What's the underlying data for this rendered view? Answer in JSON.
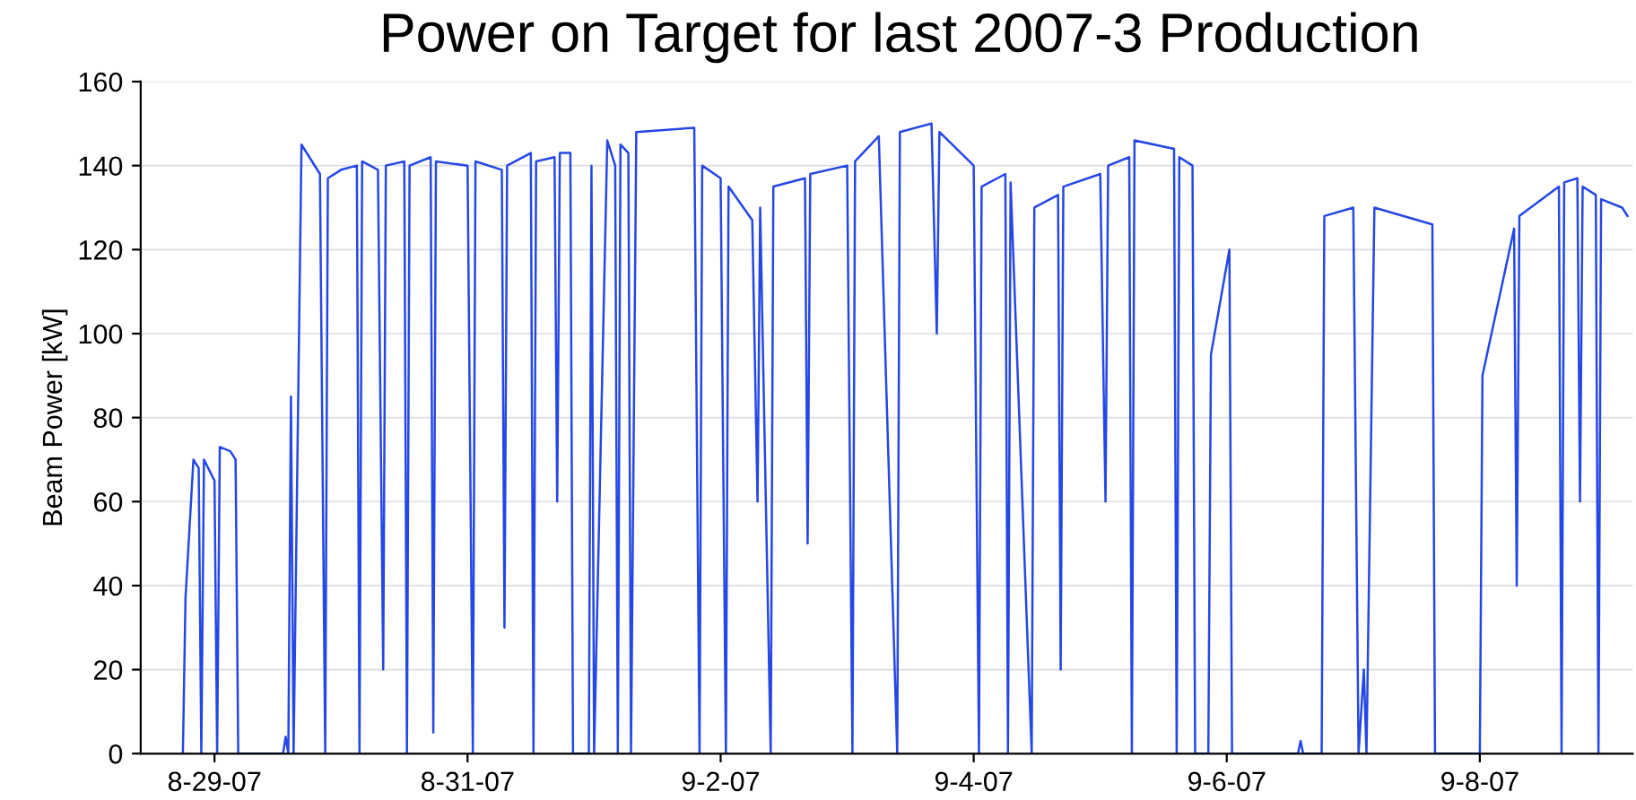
{
  "chart_data": {
    "type": "line",
    "title": "Power on Target for last 2007-3 Production",
    "ylabel": "Beam Power [kW]",
    "xlim": [
      "2007-08-28T10:00",
      "2007-09-09T05:00"
    ],
    "xticks": [
      {
        "value": "2007-08-29",
        "label": "8-29-07"
      },
      {
        "value": "2007-08-31",
        "label": "8-31-07"
      },
      {
        "value": "2007-09-02",
        "label": "9-2-07"
      },
      {
        "value": "2007-09-04",
        "label": "9-4-07"
      },
      {
        "value": "2007-09-06",
        "label": "9-6-07"
      },
      {
        "value": "2007-09-08",
        "label": "9-8-07"
      }
    ],
    "ylim": [
      0,
      160
    ],
    "yticks": [
      0,
      20,
      40,
      60,
      80,
      100,
      120,
      140,
      160
    ],
    "grid": "y",
    "legend": false,
    "marker": "none",
    "line_style": "solid",
    "series": [
      {
        "color": "#2447e6",
        "x": [
          "2007-08-28T18:00",
          "2007-08-28T18:30",
          "2007-08-28T20:00",
          "2007-08-28T21:00",
          "2007-08-28T21:30",
          "2007-08-28T22:00",
          "2007-08-29T00:00",
          "2007-08-29T00:30",
          "2007-08-29T01:00",
          "2007-08-29T03:00",
          "2007-08-29T04:00",
          "2007-08-29T04:30",
          "2007-08-29T13:00",
          "2007-08-29T13:30",
          "2007-08-29T14:00",
          "2007-08-29T14:30",
          "2007-08-29T15:00",
          "2007-08-29T16:30",
          "2007-08-29T20:00",
          "2007-08-29T21:00",
          "2007-08-29T21:30",
          "2007-08-30T00:00",
          "2007-08-30T03:00",
          "2007-08-30T03:30",
          "2007-08-30T04:00",
          "2007-08-30T07:00",
          "2007-08-30T08:00",
          "2007-08-30T08:30",
          "2007-08-30T12:00",
          "2007-08-30T12:30",
          "2007-08-30T13:00",
          "2007-08-30T17:00",
          "2007-08-30T17:30",
          "2007-08-30T18:00",
          "2007-08-31T00:00",
          "2007-08-31T01:00",
          "2007-08-31T01:30",
          "2007-08-31T06:30",
          "2007-08-31T07:00",
          "2007-08-31T07:30",
          "2007-08-31T12:00",
          "2007-08-31T12:30",
          "2007-08-31T13:00",
          "2007-08-31T16:30",
          "2007-08-31T17:00",
          "2007-08-31T17:30",
          "2007-08-31T19:30",
          "2007-08-31T20:00",
          "2007-08-31T23:00",
          "2007-08-31T23:30",
          "2007-09-01T00:00",
          "2007-09-01T02:30",
          "2007-09-01T04:00",
          "2007-09-01T04:30",
          "2007-09-01T05:00",
          "2007-09-01T06:30",
          "2007-09-01T07:00",
          "2007-09-01T08:00",
          "2007-09-01T19:00",
          "2007-09-01T20:00",
          "2007-09-01T20:30",
          "2007-09-02T00:00",
          "2007-09-02T01:00",
          "2007-09-02T01:30",
          "2007-09-02T06:00",
          "2007-09-02T07:00",
          "2007-09-02T07:30",
          "2007-09-02T09:30",
          "2007-09-02T10:00",
          "2007-09-02T16:00",
          "2007-09-02T16:30",
          "2007-09-02T17:00",
          "2007-09-03T00:00",
          "2007-09-03T01:00",
          "2007-09-03T01:30",
          "2007-09-03T06:00",
          "2007-09-03T09:30",
          "2007-09-03T10:00",
          "2007-09-03T16:00",
          "2007-09-03T17:00",
          "2007-09-03T17:30",
          "2007-09-04T00:00",
          "2007-09-04T01:00",
          "2007-09-04T01:30",
          "2007-09-04T06:00",
          "2007-09-04T06:30",
          "2007-09-04T07:00",
          "2007-09-04T11:00",
          "2007-09-04T11:30",
          "2007-09-04T16:00",
          "2007-09-04T16:30",
          "2007-09-04T17:00",
          "2007-09-05T00:00",
          "2007-09-05T01:00",
          "2007-09-05T01:30",
          "2007-09-05T05:30",
          "2007-09-05T06:00",
          "2007-09-05T06:30",
          "2007-09-05T14:00",
          "2007-09-05T14:30",
          "2007-09-05T15:00",
          "2007-09-05T17:30",
          "2007-09-05T18:00",
          "2007-09-05T20:30",
          "2007-09-05T21:00",
          "2007-09-06T00:30",
          "2007-09-06T01:00",
          "2007-09-06T13:30",
          "2007-09-06T14:00",
          "2007-09-06T14:30",
          "2007-09-06T18:00",
          "2007-09-06T18:30",
          "2007-09-07T00:00",
          "2007-09-07T01:00",
          "2007-09-07T02:00",
          "2007-09-07T02:30",
          "2007-09-07T04:00",
          "2007-09-07T15:00",
          "2007-09-07T15:30",
          "2007-09-08T00:00",
          "2007-09-08T00:30",
          "2007-09-08T06:30",
          "2007-09-08T07:00",
          "2007-09-08T07:30",
          "2007-09-08T15:00",
          "2007-09-08T15:30",
          "2007-09-08T16:00",
          "2007-09-08T18:30",
          "2007-09-08T19:00",
          "2007-09-08T19:30",
          "2007-09-08T22:00",
          "2007-09-08T22:30",
          "2007-09-08T23:00",
          "2007-09-09T03:00",
          "2007-09-09T04:00"
        ],
        "values": [
          0,
          37,
          70,
          68,
          0,
          70,
          65,
          0,
          73,
          72,
          70,
          0,
          0,
          4,
          0,
          85,
          0,
          145,
          138,
          0,
          137,
          139,
          140,
          0,
          141,
          139,
          20,
          140,
          141,
          0,
          140,
          142,
          5,
          141,
          140,
          0,
          141,
          139,
          30,
          140,
          143,
          0,
          141,
          142,
          60,
          143,
          143,
          0,
          0,
          140,
          0,
          146,
          140,
          0,
          145,
          143,
          0,
          148,
          149,
          0,
          140,
          137,
          0,
          135,
          127,
          60,
          130,
          0,
          135,
          137,
          50,
          138,
          140,
          0,
          141,
          147,
          0,
          148,
          150,
          100,
          148,
          140,
          0,
          135,
          138,
          0,
          136,
          0,
          130,
          133,
          20,
          135,
          138,
          60,
          140,
          142,
          0,
          146,
          144,
          0,
          142,
          140,
          0,
          0,
          95,
          120,
          0,
          0,
          3,
          0,
          0,
          128,
          130,
          0,
          20,
          0,
          130,
          126,
          0,
          0,
          90,
          125,
          40,
          128,
          135,
          0,
          136,
          137,
          60,
          135,
          133,
          0,
          132,
          130,
          128
        ]
      }
    ]
  }
}
